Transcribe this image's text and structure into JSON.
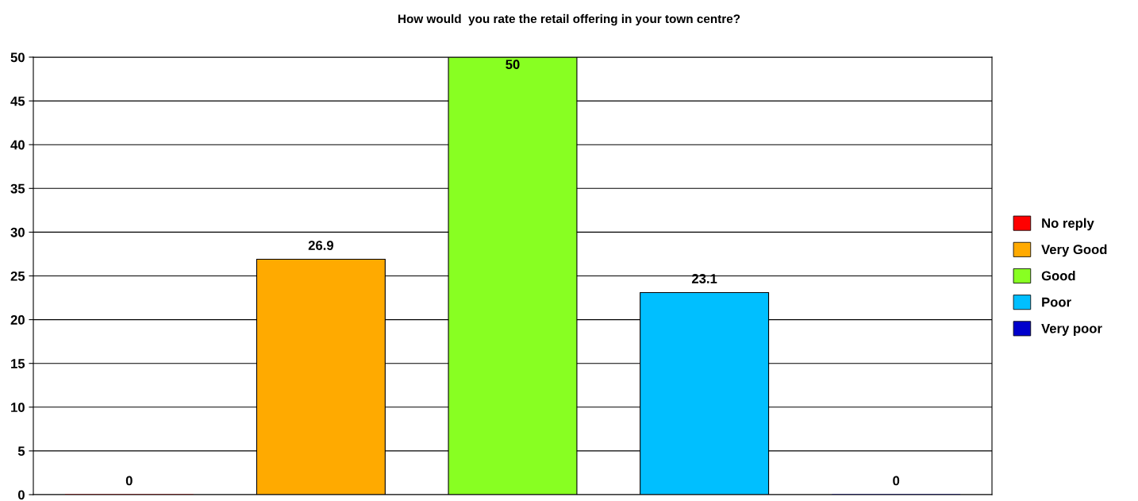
{
  "chart_data": {
    "type": "bar",
    "title": "How would  you rate the retail offering in your town centre?",
    "categories": [
      null,
      null,
      null,
      null,
      null
    ],
    "series": [
      {
        "name": "No reply",
        "color": "#ff0000",
        "values": [
          0,
          null,
          null,
          null,
          null
        ]
      },
      {
        "name": "Very Good",
        "color": "#ffaa00",
        "values": [
          null,
          26.9,
          null,
          null,
          null
        ]
      },
      {
        "name": "Good",
        "color": "#88ff22",
        "values": [
          null,
          null,
          50,
          null,
          null
        ]
      },
      {
        "name": "Poor",
        "color": "#00bfff",
        "values": [
          null,
          null,
          null,
          23.1,
          null
        ]
      },
      {
        "name": "Very poor",
        "color": "#0000cc",
        "values": [
          null,
          null,
          null,
          null,
          0
        ]
      }
    ],
    "ylim": [
      0,
      50
    ],
    "yticks": [
      0,
      5,
      10,
      15,
      20,
      25,
      30,
      35,
      40,
      45,
      50
    ],
    "grid": "y",
    "legend": "right",
    "data_labels": true
  }
}
